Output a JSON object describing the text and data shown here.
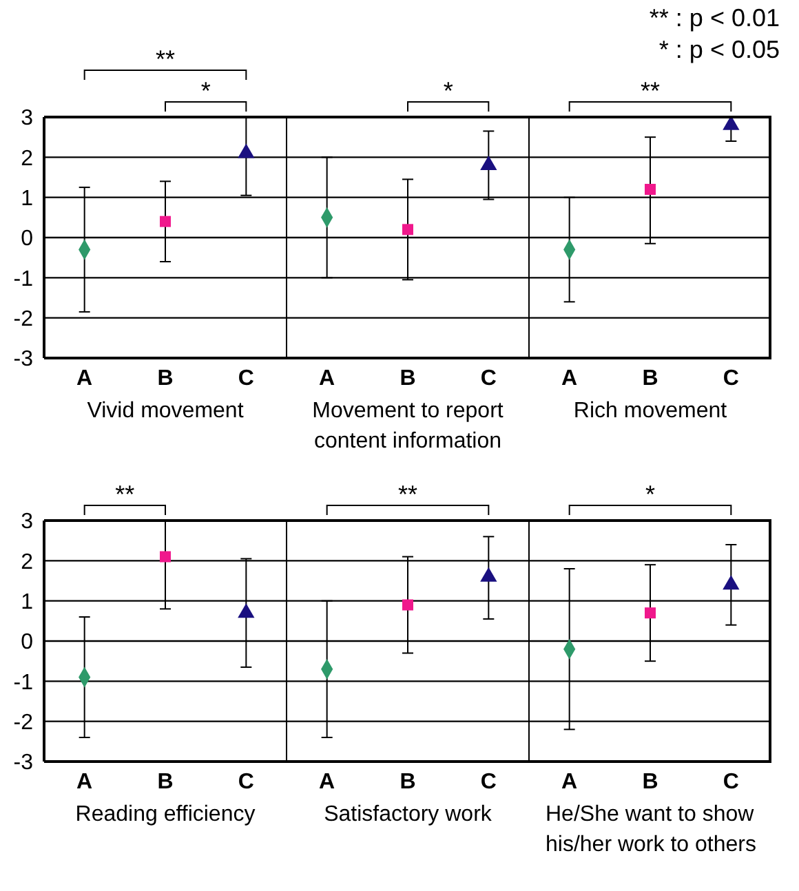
{
  "chart_data": [
    {
      "type": "scatter",
      "xlabel": "Vivid movement",
      "categories": [
        "A",
        "B",
        "C"
      ],
      "ylim": [
        -3,
        3
      ],
      "yticks": [
        -3,
        -2,
        -1,
        0,
        1,
        2,
        3
      ],
      "grid": "y",
      "annotations": [
        "**",
        "*"
      ],
      "series": [
        {
          "color": "#2e9a6a",
          "marker": "diamond",
          "values": [
            -0.3,
            null,
            null
          ],
          "errors": [
            [
              -1.85,
              1.25
            ],
            null,
            null
          ]
        },
        {
          "color": "#f0188c",
          "marker": "square",
          "values": [
            null,
            0.4,
            null
          ],
          "errors": [
            null,
            [
              -0.6,
              1.4
            ],
            null
          ]
        },
        {
          "color": "#1a1080",
          "marker": "triangle",
          "values": [
            null,
            null,
            2.1
          ],
          "errors": [
            null,
            null,
            [
              1.05,
              3
            ]
          ]
        }
      ]
    },
    {
      "type": "scatter",
      "xlabel": "Movement to report content information",
      "categories": [
        "A",
        "B",
        "C"
      ],
      "ylim": [
        -3,
        3
      ],
      "yticks": [
        -3,
        -2,
        -1,
        0,
        1,
        2,
        3
      ],
      "grid": "y",
      "tick_labels": "x",
      "annotations": [
        "*"
      ],
      "series": [
        {
          "color": "#2e9a6a",
          "marker": "diamond",
          "values": [
            0.5,
            null,
            null
          ],
          "errors": [
            [
              -1,
              2
            ],
            null,
            null
          ]
        },
        {
          "color": "#f0188c",
          "marker": "square",
          "values": [
            null,
            0.2,
            null
          ],
          "errors": [
            null,
            [
              -1.05,
              1.45
            ],
            null
          ]
        },
        {
          "color": "#1a1080",
          "marker": "triangle",
          "values": [
            null,
            null,
            1.8
          ],
          "errors": [
            null,
            null,
            [
              0.95,
              2.65
            ]
          ]
        }
      ]
    },
    {
      "type": "scatter",
      "xlabel": "Rich movement",
      "categories": [
        "A",
        "B",
        "C"
      ],
      "ylim": [
        -3,
        3
      ],
      "yticks": [
        -3,
        -2,
        -1,
        0,
        1,
        2,
        3
      ],
      "grid": "y",
      "tick_labels": "x",
      "annotations": [
        "**",
        "** : p < 0.01",
        "* : p < 0.05"
      ],
      "series": [
        {
          "color": "#2e9a6a",
          "marker": "diamond",
          "values": [
            -0.3,
            null,
            null
          ],
          "errors": [
            [
              -1.6,
              1
            ],
            null,
            null
          ]
        },
        {
          "color": "#f0188c",
          "marker": "square",
          "values": [
            null,
            1.2,
            null
          ],
          "errors": [
            null,
            [
              -0.15,
              2.5
            ],
            null
          ]
        },
        {
          "color": "#1a1080",
          "marker": "triangle",
          "values": [
            null,
            null,
            2.8
          ],
          "errors": [
            null,
            null,
            [
              2.4,
              3
            ]
          ]
        }
      ]
    },
    {
      "type": "scatter",
      "xlabel": "Reading efficiency",
      "categories": [
        "A",
        "B",
        "C"
      ],
      "ylim": [
        -3,
        3
      ],
      "yticks": [
        -3,
        -2,
        -1,
        0,
        1,
        2,
        3
      ],
      "grid": "y",
      "annotations": [
        "**"
      ],
      "series": [
        {
          "color": "#2e9a6a",
          "marker": "diamond",
          "values": [
            -0.9,
            null,
            null
          ],
          "errors": [
            [
              -2.4,
              0.6
            ],
            null,
            null
          ]
        },
        {
          "color": "#f0188c",
          "marker": "square",
          "values": [
            null,
            2.1,
            null
          ],
          "errors": [
            null,
            [
              0.8,
              3
            ],
            null
          ]
        },
        {
          "color": "#1a1080",
          "marker": "triangle",
          "values": [
            null,
            null,
            0.7
          ],
          "errors": [
            null,
            null,
            [
              -0.65,
              2.05
            ]
          ]
        }
      ]
    },
    {
      "type": "scatter",
      "xlabel": "Satisfactory work",
      "categories": [
        "A",
        "B",
        "C"
      ],
      "ylim": [
        -3,
        3
      ],
      "yticks": [
        -3,
        -2,
        -1,
        0,
        1,
        2,
        3
      ],
      "grid": "y",
      "tick_labels": "x",
      "annotations": [
        "**"
      ],
      "series": [
        {
          "color": "#2e9a6a",
          "marker": "diamond",
          "values": [
            -0.7,
            null,
            null
          ],
          "errors": [
            [
              -2.4,
              1
            ],
            null,
            null
          ]
        },
        {
          "color": "#f0188c",
          "marker": "square",
          "values": [
            null,
            0.9,
            null
          ],
          "errors": [
            null,
            [
              -0.3,
              2.1
            ],
            null
          ]
        },
        {
          "color": "#1a1080",
          "marker": "triangle",
          "values": [
            null,
            null,
            1.6
          ],
          "errors": [
            null,
            null,
            [
              0.55,
              2.6
            ]
          ]
        }
      ]
    },
    {
      "type": "scatter",
      "xlabel": "He/She want to show his/her work to others",
      "categories": [
        "A",
        "B",
        "C"
      ],
      "ylim": [
        -3,
        3
      ],
      "yticks": [
        -3,
        -2,
        -1,
        0,
        1,
        2,
        3
      ],
      "grid": "y",
      "tick_labels": "x",
      "annotations": [
        "*"
      ],
      "series": [
        {
          "color": "#2e9a6a",
          "marker": "diamond",
          "values": [
            -0.2,
            null,
            null
          ],
          "errors": [
            [
              -2.2,
              1.8
            ],
            null,
            null
          ]
        },
        {
          "color": "#f0188c",
          "marker": "square",
          "values": [
            null,
            0.7,
            null
          ],
          "errors": [
            null,
            [
              -0.5,
              1.9
            ],
            null
          ]
        },
        {
          "color": "#1a1080",
          "marker": "triangle",
          "values": [
            null,
            null,
            1.4
          ],
          "errors": [
            null,
            null,
            [
              0.4,
              2.4
            ]
          ]
        }
      ]
    }
  ]
}
